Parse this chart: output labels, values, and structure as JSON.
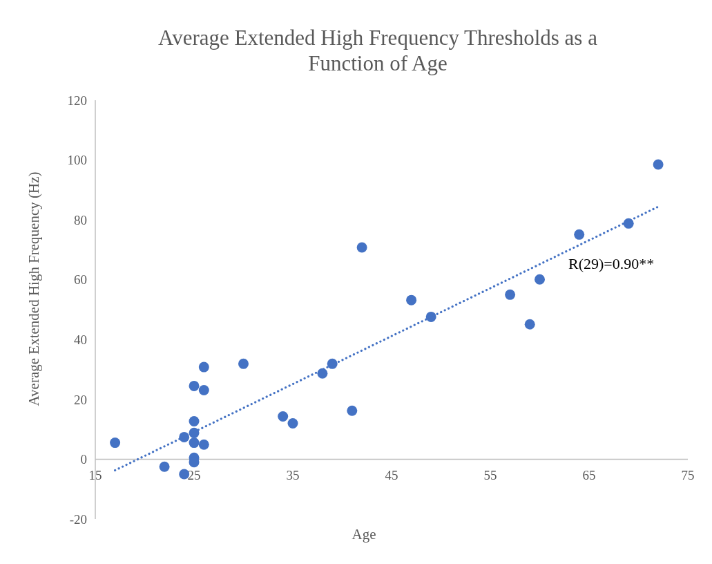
{
  "chart_data": {
    "type": "scatter",
    "title": "Average Extended High Frequency Thresholds as a Function of Age",
    "xlabel": "Age",
    "ylabel": "Average Extended High Frequency (Hz)",
    "xlim": [
      15,
      75
    ],
    "xticks": [
      15,
      25,
      35,
      45,
      55,
      65,
      75
    ],
    "ylim": [
      -20,
      120
    ],
    "yticks": [
      -20,
      0,
      20,
      40,
      60,
      80,
      100,
      120
    ],
    "grid": false,
    "marker": "circle",
    "series": [
      {
        "color": "#4472c4",
        "x": [
          17,
          22,
          24,
          24,
          25,
          25,
          25,
          25,
          25,
          25,
          26,
          26,
          26,
          30,
          34,
          35,
          38,
          39,
          41,
          42,
          47,
          49,
          57,
          59,
          60,
          64,
          69,
          72
        ],
        "values": [
          5.5,
          -2.5,
          7.4,
          -5,
          12.7,
          8.8,
          5.5,
          0.5,
          -1,
          24.5,
          30.8,
          23.1,
          4.9,
          31.9,
          14.3,
          12,
          28.7,
          31.9,
          16.2,
          70.8,
          53.2,
          47.6,
          55,
          45.1,
          60.1,
          75.1,
          78.8,
          98.5
        ]
      },
      {
        "type": "line",
        "color": "#4472c4",
        "line_style": "dotted",
        "marker": "none",
        "x": [
          17,
          72
        ],
        "values": [
          -3.7,
          84.4
        ]
      }
    ],
    "annotations": [
      "R(29)=0.90**"
    ]
  }
}
